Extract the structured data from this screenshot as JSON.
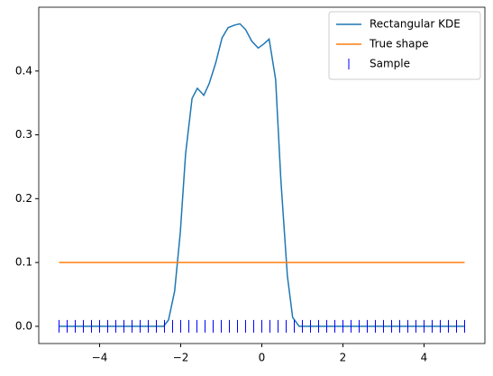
{
  "chart_data": {
    "type": "line",
    "series": [
      {
        "name": "Rectangular KDE",
        "color": "#1f77b4",
        "x": [
          -5,
          -2.42,
          -2.3,
          -2.15,
          -2.01,
          -1.88,
          -1.72,
          -1.59,
          -1.43,
          -1.3,
          -1.14,
          -0.98,
          -0.83,
          -0.67,
          -0.54,
          -0.4,
          -0.25,
          -0.09,
          0.04,
          0.18,
          0.34,
          0.47,
          0.63,
          0.76,
          0.92,
          5
        ],
        "values": [
          0,
          0,
          0.01,
          0.055,
          0.147,
          0.27,
          0.357,
          0.373,
          0.362,
          0.38,
          0.412,
          0.452,
          0.468,
          0.472,
          0.474,
          0.465,
          0.447,
          0.436,
          0.442,
          0.45,
          0.387,
          0.229,
          0.079,
          0.014,
          0,
          0
        ]
      },
      {
        "name": "True shape",
        "color": "#ff7f0e",
        "x": [
          -5,
          5
        ],
        "values": [
          0.1,
          0.1
        ]
      },
      {
        "name": "Sample",
        "color": "#0000ff",
        "marker": "|",
        "x": [
          -5,
          -4.8,
          -4.6,
          -4.4,
          -4.2,
          -4,
          -3.8,
          -3.6,
          -3.4,
          -3.2,
          -3,
          -2.8,
          -2.6,
          -2.4,
          -2.2,
          -2,
          -1.8,
          -1.6,
          -1.4,
          -1.2,
          -1,
          -0.8,
          -0.6,
          -0.4,
          -0.2,
          0,
          0.2,
          0.4,
          0.6,
          0.8,
          1,
          1.2,
          1.4,
          1.6,
          1.8,
          2,
          2.2,
          2.4,
          2.6,
          2.8,
          3,
          3.2,
          3.4,
          3.6,
          3.8,
          4,
          4.2,
          4.4,
          4.6,
          4.8,
          5
        ]
      }
    ],
    "xlim": [
      -5.5,
      5.5
    ],
    "ylim": [
      -0.027,
      0.5
    ],
    "xticks": [
      {
        "value": -4,
        "label": "−4"
      },
      {
        "value": -2,
        "label": "−2"
      },
      0,
      2,
      4
    ],
    "yticks": [
      {
        "value": 0,
        "label": "0.0"
      },
      0.1,
      0.2,
      0.3,
      0.4
    ],
    "legend": "upper right"
  }
}
